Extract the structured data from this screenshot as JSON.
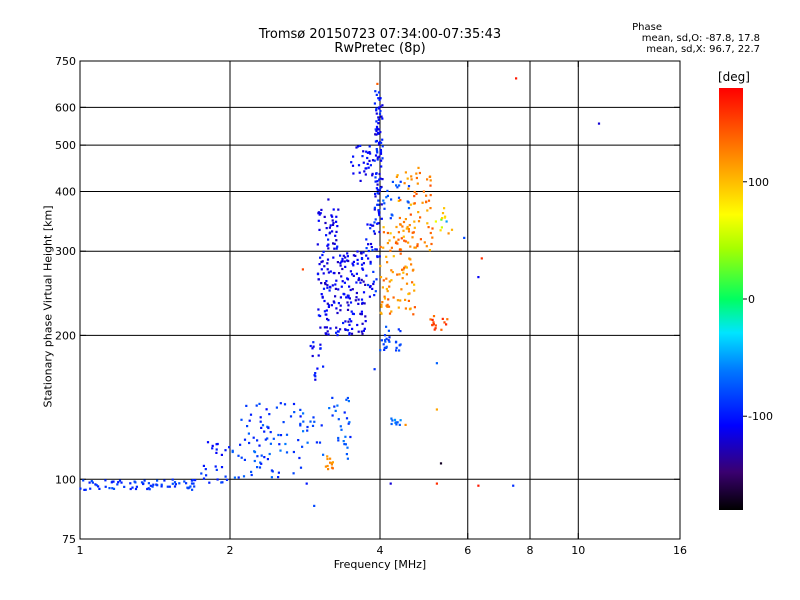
{
  "chart_data": {
    "type": "scatter",
    "title": "Tromsø 20150723 07:34:00-07:35:43",
    "subtitle": "RwPretec (8p)",
    "phase_info": {
      "heading": "Phase",
      "line_o": "mean, sd,O: -87.8, 17.8",
      "line_x": "mean, sd,X:  96.7, 22.7"
    },
    "xlabel": "Frequency [MHz]",
    "ylabel": "Stationary phase Virtual Height [km]",
    "xscale": "log",
    "yscale": "log",
    "xlim": [
      1,
      16
    ],
    "ylim": [
      75,
      750
    ],
    "xticks": [
      1,
      2,
      4,
      6,
      8,
      10,
      16
    ],
    "xtick_labels": [
      "1",
      "2",
      "4",
      "6",
      "8",
      "10",
      "16"
    ],
    "xgrid": [
      2,
      4,
      6,
      8,
      10
    ],
    "yticks": [
      75,
      100,
      200,
      300,
      400,
      500,
      600,
      750
    ],
    "ytick_labels": [
      "75",
      "100",
      "200",
      "300",
      "400",
      "500",
      "600",
      "750"
    ],
    "ygrid": [
      100,
      200,
      300,
      400,
      500,
      600
    ],
    "grid": true,
    "colorbar": {
      "label": "[deg]",
      "range": [
        -180,
        180
      ],
      "ticks": [
        100,
        0,
        -100
      ],
      "tick_labels": [
        "100",
        "0",
        "-100"
      ]
    },
    "clusters": [
      {
        "f": [
          1.0,
          1.75
        ],
        "h": [
          95,
          100
        ],
        "phase": [
          -100,
          -75
        ],
        "n": 70
      },
      {
        "f": [
          1.75,
          2.0
        ],
        "h": [
          98,
          108
        ],
        "phase": [
          -105,
          -80
        ],
        "n": 14
      },
      {
        "f": [
          1.8,
          2.0
        ],
        "h": [
          112,
          120
        ],
        "phase": [
          -110,
          -90
        ],
        "n": 10
      },
      {
        "f": [
          2.0,
          2.8
        ],
        "h": [
          100,
          120
        ],
        "phase": [
          -100,
          -60
        ],
        "n": 40
      },
      {
        "f": [
          2.1,
          2.8
        ],
        "h": [
          120,
          145
        ],
        "phase": [
          -105,
          -70
        ],
        "n": 40
      },
      {
        "f": [
          2.8,
          3.5
        ],
        "h": [
          110,
          150
        ],
        "phase": [
          -100,
          -60
        ],
        "n": 40
      },
      {
        "f": [
          3.1,
          3.3
        ],
        "h": [
          105,
          112
        ],
        "phase": [
          110,
          140
        ],
        "n": 12
      },
      {
        "f": [
          2.9,
          3.1
        ],
        "h": [
          160,
          200
        ],
        "phase": [
          -120,
          -90
        ],
        "n": 15
      },
      {
        "f": [
          3.0,
          3.3
        ],
        "h": [
          200,
          370
        ],
        "phase": [
          -130,
          -95
        ],
        "n": 110
      },
      {
        "f": [
          3.3,
          3.75
        ],
        "h": [
          200,
          300
        ],
        "phase": [
          -130,
          -95
        ],
        "n": 110
      },
      {
        "f": [
          3.75,
          4.0
        ],
        "h": [
          240,
          350
        ],
        "phase": [
          -120,
          -80
        ],
        "n": 40
      },
      {
        "f": [
          3.9,
          4.05
        ],
        "h": [
          350,
          650
        ],
        "phase": [
          -125,
          -85
        ],
        "n": 90
      },
      {
        "f": [
          3.5,
          3.9
        ],
        "h": [
          420,
          500
        ],
        "phase": [
          -120,
          -95
        ],
        "n": 30
      },
      {
        "f": [
          4.0,
          4.7
        ],
        "h": [
          220,
          350
        ],
        "phase": [
          95,
          145
        ],
        "n": 90
      },
      {
        "f": [
          4.3,
          5.1
        ],
        "h": [
          300,
          450
        ],
        "phase": [
          100,
          150
        ],
        "n": 70
      },
      {
        "f": [
          4.0,
          4.4
        ],
        "h": [
          180,
          210
        ],
        "phase": [
          -95,
          -70
        ],
        "n": 25
      },
      {
        "f": [
          4.1,
          4.4
        ],
        "h": [
          130,
          135
        ],
        "phase": [
          -80,
          -50
        ],
        "n": 10
      },
      {
        "f": [
          4.0,
          4.6
        ],
        "h": [
          350,
          420
        ],
        "phase": [
          -90,
          -60
        ],
        "n": 20
      },
      {
        "f": [
          5.0,
          5.5
        ],
        "h": [
          205,
          220
        ],
        "phase": [
          130,
          170
        ],
        "n": 15
      },
      {
        "f": [
          5.0,
          5.6
        ],
        "h": [
          320,
          380
        ],
        "phase": [
          -70,
          120
        ],
        "n": 12
      }
    ],
    "points": [
      {
        "x": 7.5,
        "y": 690,
        "phase": 170
      },
      {
        "x": 11.0,
        "y": 555,
        "phase": -120
      },
      {
        "x": 6.4,
        "y": 290,
        "phase": 160
      },
      {
        "x": 6.3,
        "y": 265,
        "phase": -110
      },
      {
        "x": 5.9,
        "y": 320,
        "phase": -80
      },
      {
        "x": 5.3,
        "y": 108,
        "phase": -170
      },
      {
        "x": 5.2,
        "y": 98,
        "phase": 160
      },
      {
        "x": 6.3,
        "y": 97,
        "phase": 170
      },
      {
        "x": 7.4,
        "y": 97,
        "phase": -90
      },
      {
        "x": 4.2,
        "y": 98,
        "phase": -120
      },
      {
        "x": 2.85,
        "y": 98,
        "phase": -100
      },
      {
        "x": 2.95,
        "y": 88,
        "phase": -80
      },
      {
        "x": 5.2,
        "y": 140,
        "phase": 110
      },
      {
        "x": 5.2,
        "y": 175,
        "phase": -70
      },
      {
        "x": 3.9,
        "y": 170,
        "phase": -90
      },
      {
        "x": 4.5,
        "y": 130,
        "phase": 120
      },
      {
        "x": 2.8,
        "y": 275,
        "phase": 150
      },
      {
        "x": 3.15,
        "y": 385,
        "phase": -120
      },
      {
        "x": 3.95,
        "y": 672,
        "phase": 140
      }
    ]
  }
}
